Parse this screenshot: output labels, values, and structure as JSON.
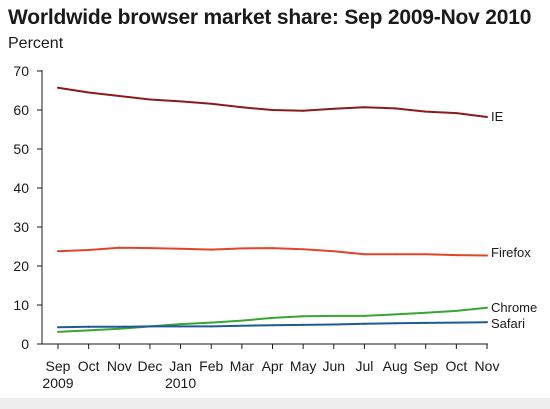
{
  "title": "Worldwide browser market share: Sep 2009-Nov 2010",
  "unit_label": "Percent",
  "chart_data": {
    "type": "line",
    "title": "Worldwide browser market share: Sep 2009-Nov 2010",
    "ylabel": "Percent",
    "xlabel": "",
    "ylim": [
      0,
      70
    ],
    "yticks": [
      0,
      10,
      20,
      30,
      40,
      50,
      60,
      70
    ],
    "grid": false,
    "legend": "direct labels at line ends",
    "categories": [
      "Sep",
      "Oct",
      "Nov",
      "Dec",
      "Jan",
      "Feb",
      "Mar",
      "Apr",
      "May",
      "Jun",
      "Jul",
      "Aug",
      "Sep",
      "Oct",
      "Nov"
    ],
    "year_labels": [
      "2009",
      "",
      "",
      "",
      "2010",
      "",
      "",
      "",
      "",
      "",
      "",
      "",
      "",
      "",
      ""
    ],
    "series": [
      {
        "name": "IE",
        "color": "#8b1a1a",
        "values": [
          65.7,
          64.5,
          63.6,
          62.7,
          62.2,
          61.6,
          60.7,
          60.0,
          59.8,
          60.3,
          60.7,
          60.4,
          59.6,
          59.2,
          58.2
        ]
      },
      {
        "name": "Firefox",
        "color": "#e0452a",
        "values": [
          23.8,
          24.1,
          24.7,
          24.6,
          24.4,
          24.2,
          24.5,
          24.6,
          24.3,
          23.8,
          23.0,
          23.0,
          23.0,
          22.8,
          22.7
        ]
      },
      {
        "name": "Chrome",
        "color": "#3aa534",
        "values": [
          3.1,
          3.5,
          3.9,
          4.5,
          5.1,
          5.5,
          6.0,
          6.7,
          7.1,
          7.2,
          7.2,
          7.6,
          8.0,
          8.5,
          9.3
        ]
      },
      {
        "name": "Safari",
        "color": "#1f5a96",
        "values": [
          4.3,
          4.4,
          4.4,
          4.5,
          4.5,
          4.5,
          4.7,
          4.8,
          4.9,
          5.0,
          5.2,
          5.3,
          5.4,
          5.5,
          5.6
        ]
      }
    ]
  }
}
